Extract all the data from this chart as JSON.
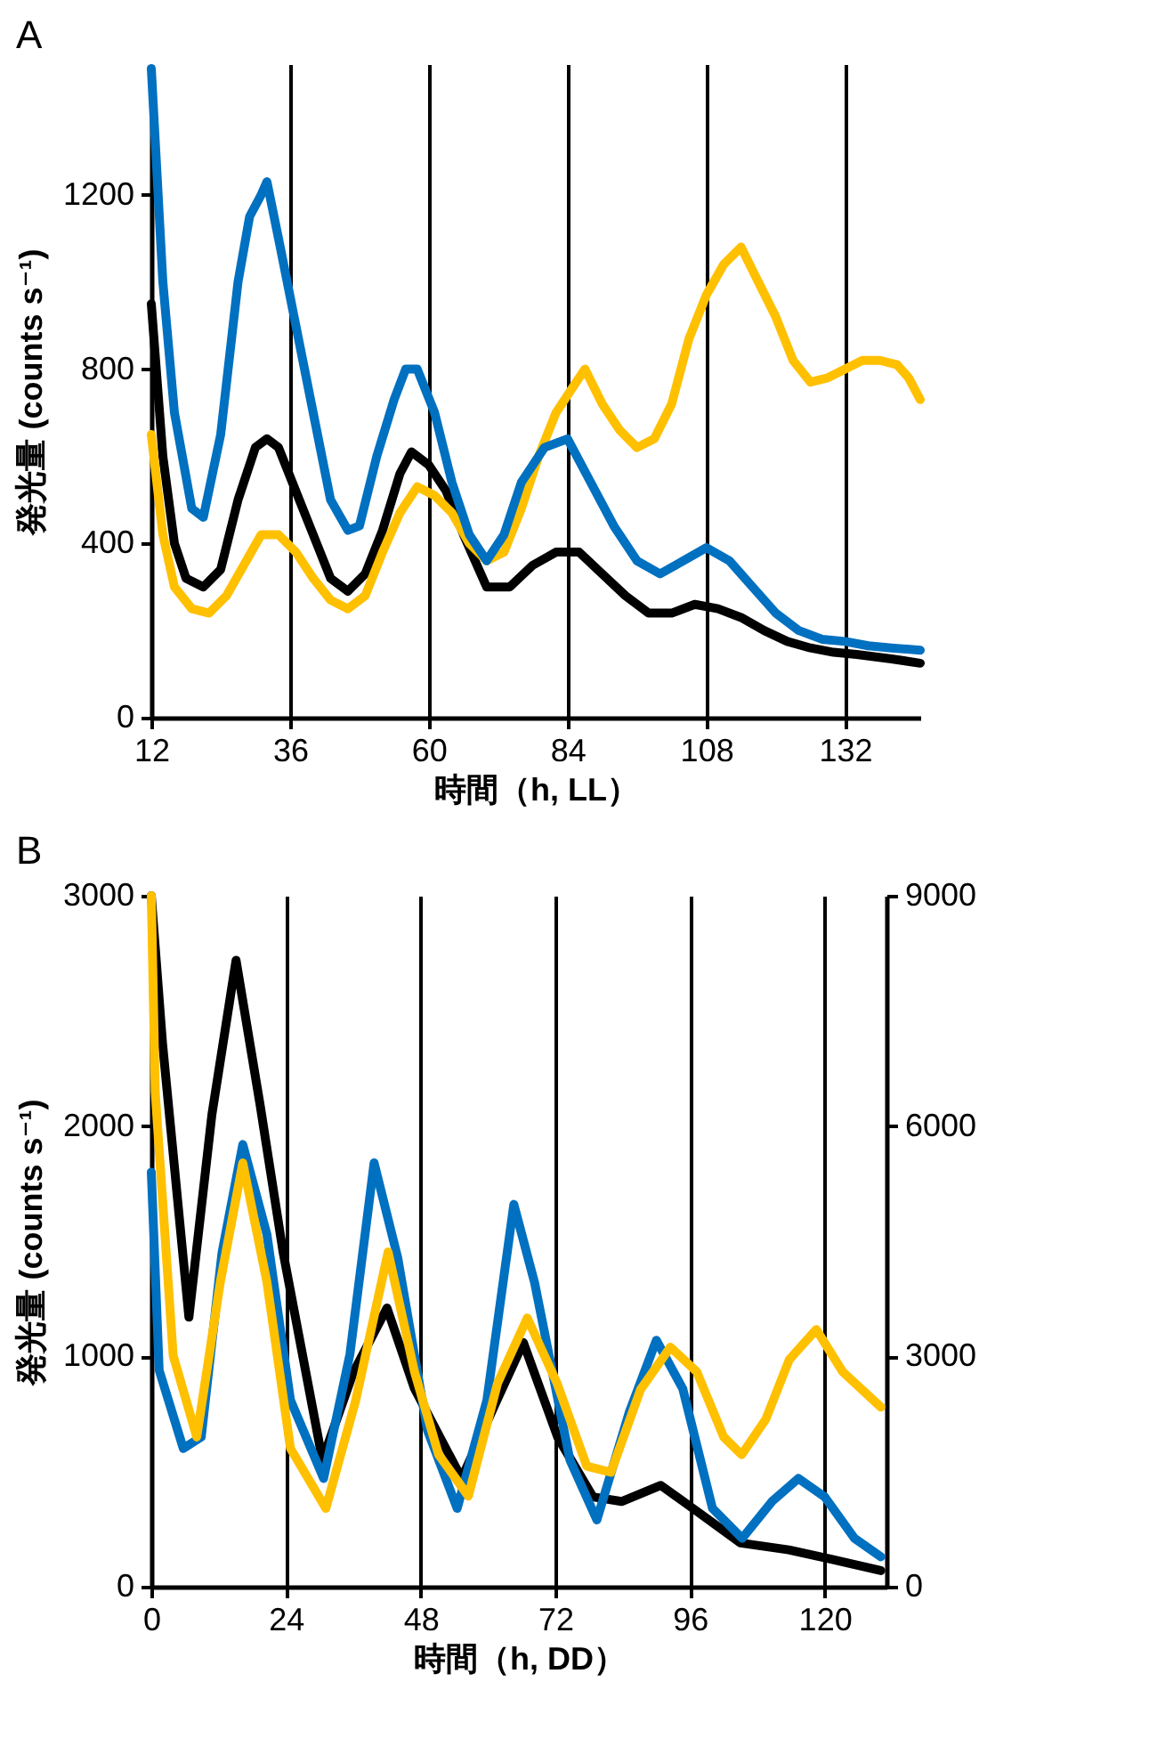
{
  "chart_data": [
    {
      "type": "line",
      "title": "A",
      "xlabel": "時間（h, LL）",
      "ylabel": "発光量 (counts s⁻¹)",
      "xlim": [
        12,
        145
      ],
      "xticks": [
        12,
        36,
        60,
        84,
        108,
        132
      ],
      "ylim": [
        0,
        1500
      ],
      "yticks": [
        0,
        400,
        800,
        1200
      ],
      "grid": "x",
      "legend": false,
      "series": [
        {
          "color": "#000000",
          "x": [
            12,
            14,
            16,
            18,
            21,
            24,
            27,
            30,
            32,
            34,
            37,
            40,
            43,
            46,
            49,
            52,
            55,
            57,
            60,
            63,
            66,
            70,
            74,
            78,
            82,
            86,
            90,
            94,
            98,
            102,
            106,
            110,
            114,
            118,
            122,
            126,
            130,
            134,
            140,
            145
          ],
          "values": [
            950,
            600,
            400,
            320,
            300,
            340,
            500,
            620,
            640,
            620,
            520,
            420,
            320,
            290,
            330,
            430,
            560,
            610,
            580,
            520,
            420,
            300,
            300,
            350,
            380,
            380,
            330,
            280,
            240,
            240,
            260,
            250,
            230,
            200,
            175,
            160,
            150,
            145,
            135,
            125
          ]
        },
        {
          "color": "#ffc000",
          "x": [
            12,
            14,
            16,
            19,
            22,
            25,
            28,
            31,
            34,
            37,
            40,
            43,
            46,
            49,
            52,
            55,
            58,
            61,
            64,
            67,
            70,
            73,
            76,
            79,
            82,
            85,
            87,
            90,
            93,
            96,
            99,
            102,
            105,
            108,
            111,
            114,
            117,
            120,
            123,
            126,
            129,
            132,
            135,
            138,
            141,
            143,
            145
          ],
          "values": [
            650,
            420,
            300,
            250,
            240,
            280,
            350,
            420,
            420,
            380,
            320,
            270,
            250,
            280,
            380,
            470,
            530,
            510,
            470,
            400,
            360,
            380,
            480,
            600,
            700,
            760,
            800,
            720,
            660,
            620,
            640,
            720,
            870,
            970,
            1040,
            1080,
            1000,
            920,
            820,
            770,
            780,
            800,
            820,
            820,
            810,
            780,
            730
          ]
        },
        {
          "color": "#0070c0",
          "x": [
            12,
            14,
            16,
            19,
            21,
            24,
            27,
            29,
            31,
            32,
            34,
            37,
            40,
            43,
            46,
            48,
            51,
            54,
            56,
            58,
            61,
            64,
            67,
            70,
            73,
            76,
            80,
            84,
            88,
            92,
            96,
            100,
            104,
            108,
            112,
            116,
            120,
            124,
            128,
            132,
            136,
            140,
            145
          ],
          "values": [
            1490,
            1000,
            700,
            480,
            460,
            650,
            1000,
            1150,
            1200,
            1230,
            1100,
            900,
            700,
            500,
            430,
            440,
            600,
            730,
            800,
            800,
            700,
            540,
            420,
            360,
            420,
            540,
            620,
            640,
            540,
            440,
            360,
            330,
            360,
            390,
            360,
            300,
            240,
            200,
            180,
            175,
            165,
            160,
            155
          ]
        }
      ]
    },
    {
      "type": "line",
      "title": "B",
      "xlabel": "時間（h, DD）",
      "ylabel": "発光量 (counts s⁻¹)",
      "xlim": [
        0,
        131
      ],
      "xticks": [
        0,
        24,
        48,
        72,
        96,
        120
      ],
      "ylim": [
        0,
        3000
      ],
      "yticks": [
        0,
        1000,
        2000,
        3000
      ],
      "y2lim": [
        0,
        9000
      ],
      "y2ticks": [
        0,
        3000,
        6000,
        9000
      ],
      "grid": "x",
      "legend": false,
      "series": [
        {
          "color": "#000000",
          "x": [
            0,
            2,
            6.7,
            10.8,
            15.1,
            19.4,
            23.5,
            30.5,
            36,
            42,
            46.9,
            55.3,
            61.6,
            66.3,
            72.4,
            78.7,
            83.8,
            90.8,
            96.5,
            105,
            113.6,
            121,
            130
          ],
          "values": [
            3000,
            2360,
            1170,
            2050,
            2720,
            2090,
            1450,
            550,
            930,
            1210,
            860,
            470,
            810,
            1060,
            650,
            390,
            370,
            440,
            340,
            190,
            160,
            120,
            70
          ]
        },
        {
          "color": "#0070c0",
          "x": [
            0,
            1.4,
            5.7,
            8.9,
            12.6,
            16.3,
            20.6,
            24.8,
            30.7,
            35.4,
            39.7,
            43.9,
            49.2,
            54.5,
            59.8,
            64.6,
            68.3,
            74.6,
            79.4,
            85.2,
            90,
            94.7,
            100,
            105.3,
            110.6,
            115.3,
            120,
            125.3,
            130
          ],
          "values": [
            1800,
            940,
            600,
            650,
            1450,
            1920,
            1530,
            810,
            470,
            1010,
            1840,
            1430,
            680,
            340,
            810,
            1660,
            1320,
            550,
            290,
            760,
            1070,
            860,
            340,
            210,
            370,
            470,
            390,
            210,
            130
          ]
        },
        {
          "color": "#ffc000",
          "axis": "y2",
          "x": [
            0,
            0.7,
            3.9,
            8.1,
            12.3,
            16.3,
            20.6,
            24.8,
            31.1,
            36.4,
            42.2,
            46.9,
            51.2,
            56.5,
            61.7,
            67,
            72.3,
            77.6,
            81.9,
            87.2,
            92.5,
            97.2,
            102,
            105.2,
            109.5,
            113.7,
            118.5,
            123.2,
            130
          ],
          "values": [
            9000,
            6440,
            3010,
            1950,
            3970,
            5520,
            3970,
            1800,
            1020,
            2420,
            4360,
            2800,
            1720,
            1180,
            2650,
            3500,
            2650,
            1570,
            1490,
            2570,
            3120,
            2800,
            1950,
            1720,
            2180,
            2960,
            3350,
            2800,
            2340
          ]
        }
      ]
    }
  ]
}
